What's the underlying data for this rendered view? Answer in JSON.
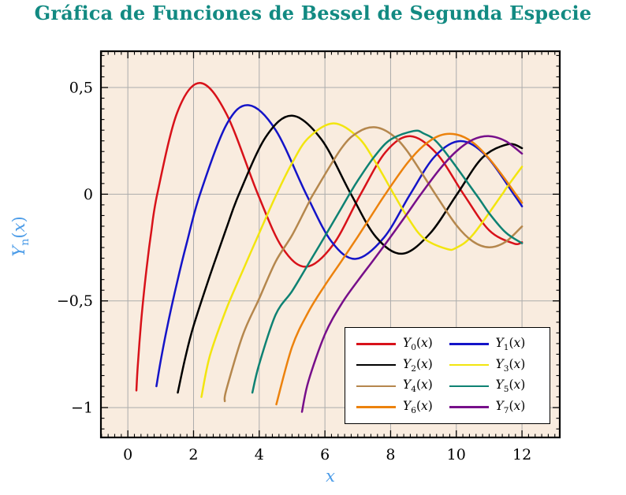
{
  "header": {
    "title": "Gráfica de Funciones de Bessel de Segunda Especie"
  },
  "colors": {
    "title": "#128A82",
    "axis_label": "#4C9CE8",
    "plot_background": "#F9ECDF",
    "grid": "#ACACAC",
    "frame": "#000000",
    "tick": "#000000",
    "page_background": "#FFFFFF",
    "legend_background": "#FFFFFF",
    "legend_border": "#000000"
  },
  "chart_data": {
    "type": "line",
    "title": "Gráfica de Funciones de Bessel de Segunda Especie",
    "xlabel": "x",
    "ylabel": {
      "base": "Y",
      "sub": "n",
      "arg_open": "(",
      "arg_var": "x",
      "arg_close": ")"
    },
    "xlim": [
      -0.82,
      13.15
    ],
    "ylim": [
      -1.14,
      0.67
    ],
    "grid": true,
    "legend_position": "bottom-right",
    "xticks": {
      "values": [
        0,
        2,
        4,
        6,
        8,
        10,
        12
      ],
      "labels": [
        "0",
        "2",
        "4",
        "6",
        "8",
        "10",
        "12"
      ]
    },
    "yticks": {
      "values": [
        0.5,
        0,
        -0.5,
        -1
      ],
      "labels": [
        "0,5",
        "0",
        "−0,5",
        "−1"
      ]
    },
    "minor_ticks": {
      "x_step": 0.2,
      "y_step": 0.05
    },
    "series": [
      {
        "label": "Y0(x)",
        "base": "Y",
        "sub": "0",
        "arg_open": "(",
        "arg_var": "x",
        "arg_close": ")",
        "color": "#D8121A",
        "points": [
          [
            0.26,
            -0.92
          ],
          [
            0.3,
            -0.807
          ],
          [
            0.4,
            -0.606
          ],
          [
            0.5,
            -0.445
          ],
          [
            0.6,
            -0.309
          ],
          [
            0.7,
            -0.191
          ],
          [
            0.894,
            0
          ],
          [
            1.5,
            0.382
          ],
          [
            2.197,
            0.521
          ],
          [
            3.0,
            0.377
          ],
          [
            3.958,
            0
          ],
          [
            4.7,
            -0.25
          ],
          [
            5.43,
            -0.34
          ],
          [
            6.25,
            -0.237
          ],
          [
            7.086,
            0
          ],
          [
            7.85,
            0.198
          ],
          [
            8.596,
            0.272
          ],
          [
            9.4,
            0.191
          ],
          [
            10.222,
            0
          ],
          [
            11.0,
            -0.169
          ],
          [
            11.749,
            -0.231
          ],
          [
            12.0,
            -0.225
          ]
        ]
      },
      {
        "label": "Y1(x)",
        "base": "Y",
        "sub": "1",
        "arg_open": "(",
        "arg_var": "x",
        "arg_close": ")",
        "color": "#1414C8",
        "points": [
          [
            0.87,
            -0.9
          ],
          [
            1.0,
            -0.781
          ],
          [
            1.2,
            -0.621
          ],
          [
            1.5,
            -0.412
          ],
          [
            1.8,
            -0.224
          ],
          [
            2.197,
            0
          ],
          [
            3.0,
            0.325
          ],
          [
            3.683,
            0.417
          ],
          [
            4.5,
            0.301
          ],
          [
            5.43,
            0
          ],
          [
            6.2,
            -0.222
          ],
          [
            6.942,
            -0.303
          ],
          [
            7.8,
            -0.203
          ],
          [
            8.596,
            0
          ],
          [
            9.35,
            0.178
          ],
          [
            10.123,
            0.249
          ],
          [
            10.9,
            0.181
          ],
          [
            11.749,
            0
          ],
          [
            12.0,
            -0.057
          ]
        ]
      },
      {
        "label": "Y2(x)",
        "base": "Y",
        "sub": "2",
        "arg_open": "(",
        "arg_var": "x",
        "arg_close": ")",
        "color": "#000000",
        "points": [
          [
            1.52,
            -0.93
          ],
          [
            1.75,
            -0.765
          ],
          [
            2.0,
            -0.617
          ],
          [
            2.5,
            -0.381
          ],
          [
            3.0,
            -0.16
          ],
          [
            3.384,
            0
          ],
          [
            4.2,
            0.268
          ],
          [
            5.0,
            0.368
          ],
          [
            5.9,
            0.255
          ],
          [
            6.794,
            0
          ],
          [
            7.55,
            -0.2
          ],
          [
            8.351,
            -0.279
          ],
          [
            9.2,
            -0.184
          ],
          [
            10.023,
            0
          ],
          [
            10.8,
            0.172
          ],
          [
            11.574,
            0.234
          ],
          [
            12.0,
            0.216
          ]
        ]
      },
      {
        "label": "Y3(x)",
        "base": "Y",
        "sub": "3",
        "arg_open": "(",
        "arg_var": "x",
        "arg_close": ")",
        "color": "#F2E50F",
        "points": [
          [
            2.24,
            -0.95
          ],
          [
            2.5,
            -0.756
          ],
          [
            3.0,
            -0.538
          ],
          [
            3.5,
            -0.358
          ],
          [
            4.0,
            -0.182
          ],
          [
            4.527,
            0
          ],
          [
            5.0,
            0.146
          ],
          [
            5.5,
            0.264
          ],
          [
            6.26,
            0.332
          ],
          [
            7.0,
            0.268
          ],
          [
            7.5,
            0.16
          ],
          [
            8.098,
            0
          ],
          [
            8.5,
            -0.104
          ],
          [
            9.0,
            -0.205
          ],
          [
            9.7,
            -0.256
          ],
          [
            10.0,
            -0.251
          ],
          [
            10.5,
            -0.191
          ],
          [
            11.397,
            0
          ],
          [
            11.5,
            0.024
          ],
          [
            12.0,
            0.129
          ]
        ]
      },
      {
        "label": "Y4(x)",
        "base": "Y",
        "sub": "4",
        "arg_open": "(",
        "arg_var": "x",
        "arg_close": ")",
        "color": "#B5874D",
        "points": [
          [
            2.95,
            -0.97
          ],
          [
            3.0,
            -0.916
          ],
          [
            3.5,
            -0.66
          ],
          [
            4.0,
            -0.489
          ],
          [
            4.5,
            -0.316
          ],
          [
            5.0,
            -0.192
          ],
          [
            5.5,
            -0.042
          ],
          [
            5.645,
            0
          ],
          [
            6.5,
            0.215
          ],
          [
            7.0,
            0.29
          ],
          [
            7.5,
            0.314
          ],
          [
            8.0,
            0.283
          ],
          [
            8.5,
            0.203
          ],
          [
            9.362,
            0
          ],
          [
            10.0,
            -0.145
          ],
          [
            10.5,
            -0.221
          ],
          [
            11.0,
            -0.249
          ],
          [
            11.5,
            -0.223
          ],
          [
            12.0,
            -0.151
          ]
        ]
      },
      {
        "label": "Y5(x)",
        "base": "Y",
        "sub": "5",
        "arg_open": "(",
        "arg_var": "x",
        "arg_close": ")",
        "color": "#0E8273",
        "points": [
          [
            3.79,
            -0.93
          ],
          [
            4.0,
            -0.796
          ],
          [
            4.5,
            -0.565
          ],
          [
            5.0,
            -0.454
          ],
          [
            5.5,
            -0.326
          ],
          [
            6.0,
            -0.197
          ],
          [
            6.5,
            -0.065
          ],
          [
            6.747,
            0
          ],
          [
            7.0,
            0.064
          ],
          [
            7.5,
            0.175
          ],
          [
            8.0,
            0.256
          ],
          [
            8.7,
            0.296
          ],
          [
            9.0,
            0.285
          ],
          [
            9.5,
            0.229
          ],
          [
            10.597,
            0
          ],
          [
            11.0,
            -0.089
          ],
          [
            11.5,
            -0.179
          ],
          [
            12.0,
            -0.23
          ]
        ]
      },
      {
        "label": "Y6(x)",
        "base": "Y",
        "sub": "6",
        "arg_open": "(",
        "arg_var": "x",
        "arg_close": ")",
        "color": "#EC820D",
        "points": [
          [
            4.52,
            -0.985
          ],
          [
            5.0,
            -0.715
          ],
          [
            5.5,
            -0.551
          ],
          [
            6.0,
            -0.427
          ],
          [
            6.5,
            -0.314
          ],
          [
            7.0,
            -0.199
          ],
          [
            7.5,
            -0.08
          ],
          [
            7.838,
            0
          ],
          [
            8.5,
            0.144
          ],
          [
            9.0,
            0.227
          ],
          [
            9.5,
            0.275
          ],
          [
            10.0,
            0.28
          ],
          [
            10.5,
            0.243
          ],
          [
            11.0,
            0.167
          ],
          [
            11.5,
            0.067
          ],
          [
            11.811,
            0
          ],
          [
            12.0,
            -0.04
          ]
        ]
      },
      {
        "label": "Y7(x)",
        "base": "Y",
        "sub": "7",
        "arg_open": "(",
        "arg_var": "x",
        "arg_close": ")",
        "color": "#770F8A",
        "points": [
          [
            5.3,
            -1.02
          ],
          [
            5.5,
            -0.875
          ],
          [
            6.0,
            -0.657
          ],
          [
            6.5,
            -0.515
          ],
          [
            7.0,
            -0.406
          ],
          [
            7.5,
            -0.304
          ],
          [
            8.0,
            -0.2
          ],
          [
            8.5,
            -0.092
          ],
          [
            8.92,
            0
          ],
          [
            9.5,
            0.118
          ],
          [
            10.0,
            0.201
          ],
          [
            10.5,
            0.255
          ],
          [
            11.0,
            0.272
          ],
          [
            11.5,
            0.249
          ],
          [
            12.0,
            0.19
          ]
        ]
      }
    ]
  }
}
